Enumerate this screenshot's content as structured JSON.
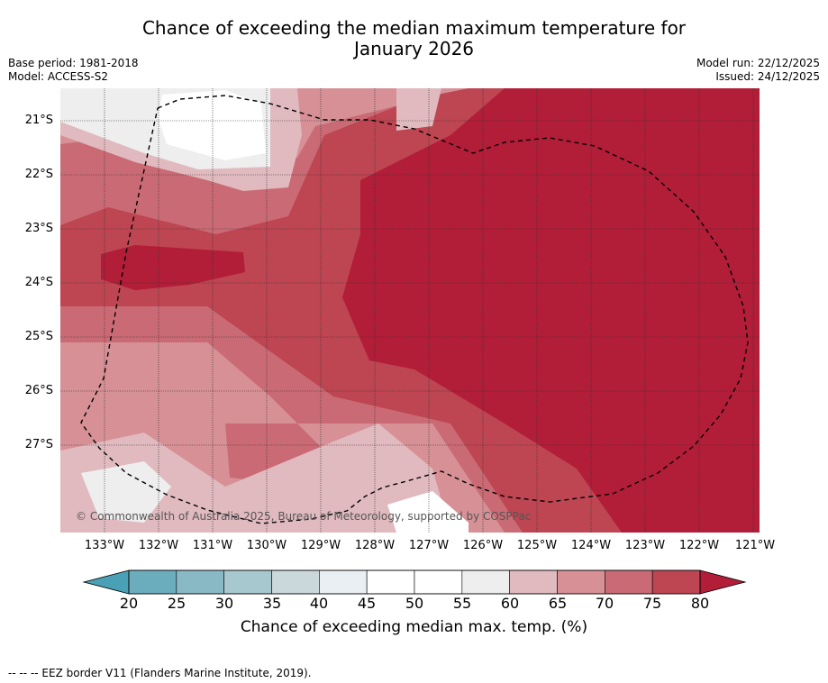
{
  "title": {
    "line1": "Chance of exceeding the median maximum temperature for",
    "line2": "January 2026"
  },
  "meta": {
    "base_period": "Base period: 1981-2018",
    "model": "Model: ACCESS-S2",
    "model_run": "Model run: 22/12/2025",
    "issued": "Issued: 24/12/2025"
  },
  "map": {
    "lat_labels": [
      "21°S",
      "22°S",
      "23°S",
      "24°S",
      "25°S",
      "26°S",
      "27°S"
    ],
    "lon_labels": [
      "133°W",
      "132°W",
      "131°W",
      "130°W",
      "129°W",
      "128°W",
      "127°W",
      "126°W",
      "125°W",
      "124°W",
      "123°W",
      "122°W",
      "121°W"
    ],
    "copyright": "© Commonwealth of Australia 2025, Bureau of Meteorology, supported by COSPPac",
    "colors": {
      "c60_65": "#e0babf",
      "c65_70": "#d69096",
      "c70_75": "#ca6a74",
      "c75_80": "#be4552",
      "c80": "#b21d38",
      "c50_55": "#ffffff",
      "c55_60": "#eeeeee"
    }
  },
  "colorbar": {
    "ticks": [
      "20",
      "25",
      "30",
      "35",
      "40",
      "45",
      "50",
      "55",
      "60",
      "65",
      "70",
      "75",
      "80"
    ],
    "colors": [
      "#6badbd",
      "#8ab9c6",
      "#a8c8cf",
      "#cbd8db",
      "#e9eff2",
      "#ffffff",
      "#ffffff",
      "#eeeeee",
      "#e0babf",
      "#d69096",
      "#ca6a74",
      "#be4552"
    ],
    "under_color": "#4aa1b5",
    "over_color": "#b21d38",
    "label": "Chance of exceeding median max. temp. (%)"
  },
  "footer": {
    "eez": "--  --  -- EEZ border V11 (Flanders Marine Institute, 2019)."
  }
}
